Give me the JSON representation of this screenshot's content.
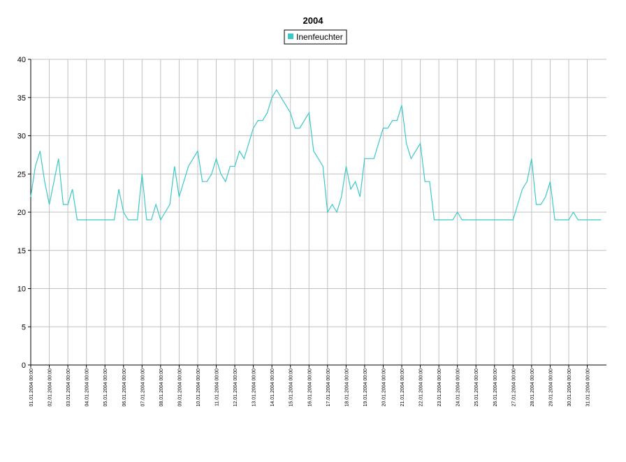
{
  "chart_data": {
    "type": "line",
    "title": "2004",
    "x": [
      "01.01.2004 00:00",
      "01.01.2004 06:00",
      "01.01.2004 12:00",
      "01.01.2004 18:00",
      "02.01.2004 00:00",
      "02.01.2004 06:00",
      "02.01.2004 12:00",
      "02.01.2004 18:00",
      "03.01.2004 00:00",
      "03.01.2004 06:00",
      "03.01.2004 12:00",
      "03.01.2004 18:00",
      "04.01.2004 00:00",
      "04.01.2004 06:00",
      "04.01.2004 12:00",
      "04.01.2004 18:00",
      "05.01.2004 00:00",
      "05.01.2004 06:00",
      "05.01.2004 12:00",
      "05.01.2004 18:00",
      "06.01.2004 00:00",
      "06.01.2004 06:00",
      "06.01.2004 12:00",
      "06.01.2004 18:00",
      "07.01.2004 00:00",
      "07.01.2004 06:00",
      "07.01.2004 12:00",
      "07.01.2004 18:00",
      "08.01.2004 00:00",
      "08.01.2004 06:00",
      "08.01.2004 12:00",
      "08.01.2004 18:00",
      "09.01.2004 00:00",
      "09.01.2004 06:00",
      "09.01.2004 12:00",
      "09.01.2004 18:00",
      "10.01.2004 00:00",
      "10.01.2004 06:00",
      "10.01.2004 12:00",
      "10.01.2004 18:00",
      "11.01.2004 00:00",
      "11.01.2004 06:00",
      "11.01.2004 12:00",
      "11.01.2004 18:00",
      "12.01.2004 00:00",
      "12.01.2004 06:00",
      "12.01.2004 12:00",
      "12.01.2004 18:00",
      "13.01.2004 00:00",
      "13.01.2004 06:00",
      "13.01.2004 12:00",
      "13.01.2004 18:00",
      "14.01.2004 00:00",
      "14.01.2004 06:00",
      "14.01.2004 12:00",
      "14.01.2004 18:00",
      "15.01.2004 00:00",
      "15.01.2004 06:00",
      "15.01.2004 12:00",
      "15.01.2004 18:00",
      "16.01.2004 00:00",
      "16.01.2004 06:00",
      "16.01.2004 12:00",
      "16.01.2004 18:00",
      "17.01.2004 00:00",
      "17.01.2004 06:00",
      "17.01.2004 12:00",
      "17.01.2004 18:00",
      "18.01.2004 00:00",
      "18.01.2004 06:00",
      "18.01.2004 12:00",
      "18.01.2004 18:00",
      "19.01.2004 00:00",
      "19.01.2004 06:00",
      "19.01.2004 12:00",
      "19.01.2004 18:00",
      "20.01.2004 00:00",
      "20.01.2004 06:00",
      "20.01.2004 12:00",
      "20.01.2004 18:00",
      "21.01.2004 00:00",
      "21.01.2004 06:00",
      "21.01.2004 12:00",
      "21.01.2004 18:00",
      "22.01.2004 00:00",
      "22.01.2004 06:00",
      "22.01.2004 12:00",
      "22.01.2004 18:00",
      "23.01.2004 00:00",
      "23.01.2004 06:00",
      "23.01.2004 12:00",
      "23.01.2004 18:00",
      "24.01.2004 00:00",
      "24.01.2004 06:00",
      "24.01.2004 12:00",
      "24.01.2004 18:00",
      "25.01.2004 00:00",
      "25.01.2004 06:00",
      "25.01.2004 12:00",
      "25.01.2004 18:00",
      "26.01.2004 00:00",
      "26.01.2004 06:00",
      "26.01.2004 12:00",
      "26.01.2004 18:00",
      "27.01.2004 00:00",
      "27.01.2004 06:00",
      "27.01.2004 12:00",
      "27.01.2004 18:00",
      "28.01.2004 00:00",
      "28.01.2004 06:00",
      "28.01.2004 12:00",
      "28.01.2004 18:00",
      "29.01.2004 00:00",
      "29.01.2004 06:00",
      "29.01.2004 12:00",
      "29.01.2004 18:00",
      "30.01.2004 00:00",
      "30.01.2004 06:00",
      "30.01.2004 12:00",
      "30.01.2004 18:00",
      "31.01.2004 00:00",
      "31.01.2004 06:00",
      "31.01.2004 12:00",
      "31.01.2004 18:00"
    ],
    "series": [
      {
        "name": "Inenfeuchter",
        "color": "#3cc8c8",
        "values": [
          22,
          26,
          28,
          24,
          21,
          24,
          27,
          21,
          21,
          23,
          19,
          19,
          19,
          19,
          19,
          19,
          19,
          19,
          19,
          23,
          20,
          19,
          19,
          19,
          25,
          19,
          19,
          21,
          19,
          20,
          21,
          26,
          22,
          24,
          26,
          27,
          28,
          24,
          24,
          25,
          27,
          25,
          24,
          26,
          26,
          28,
          27,
          29,
          31,
          32,
          32,
          33,
          35,
          36,
          35,
          34,
          33,
          31,
          31,
          32,
          33,
          28,
          27,
          26,
          20,
          21,
          20,
          22,
          26,
          23,
          24,
          22,
          27,
          27,
          27,
          29,
          31,
          31,
          32,
          32,
          34,
          29,
          27,
          28,
          29,
          24,
          24,
          19,
          19,
          19,
          19,
          19,
          20,
          19,
          19,
          19,
          19,
          19,
          19,
          19,
          19,
          19,
          19,
          19,
          19,
          21,
          23,
          24,
          27,
          21,
          21,
          22,
          24,
          19,
          19,
          19,
          19,
          20,
          19,
          19,
          19,
          19,
          19,
          19
        ]
      }
    ],
    "xlim": [
      "01.01.2004 00:00",
      "31.01.2004 23:00"
    ],
    "xticks": [
      "01.01.2004 00:00",
      "02.01.2004 00:00",
      "03.01.2004 00:00",
      "04.01.2004 00:00",
      "05.01.2004 00:00",
      "06.01.2004 00:00",
      "07.01.2004 00:00",
      "08.01.2004 00:00",
      "09.01.2004 00:00",
      "10.01.2004 00:00",
      "11.01.2004 00:00",
      "12.01.2004 00:00",
      "13.01.2004 00:00",
      "14.01.2004 00:00",
      "15.01.2004 00:00",
      "16.01.2004 00:00",
      "17.01.2004 00:00",
      "18.01.2004 00:00",
      "19.01.2004 00:00",
      "20.01.2004 00:00",
      "21.01.2004 00:00",
      "22.01.2004 00:00",
      "23.01.2004 00:00",
      "24.01.2004 00:00",
      "25.01.2004 00:00",
      "26.01.2004 00:00",
      "27.01.2004 00:00",
      "28.01.2004 00:00",
      "29.01.2004 00:00",
      "30.01.2004 00:00",
      "31.01.2004 00:00"
    ],
    "ylim": [
      0,
      40
    ],
    "yticks": [
      0,
      5,
      10,
      15,
      20,
      25,
      30,
      35,
      40
    ],
    "grid": true
  }
}
